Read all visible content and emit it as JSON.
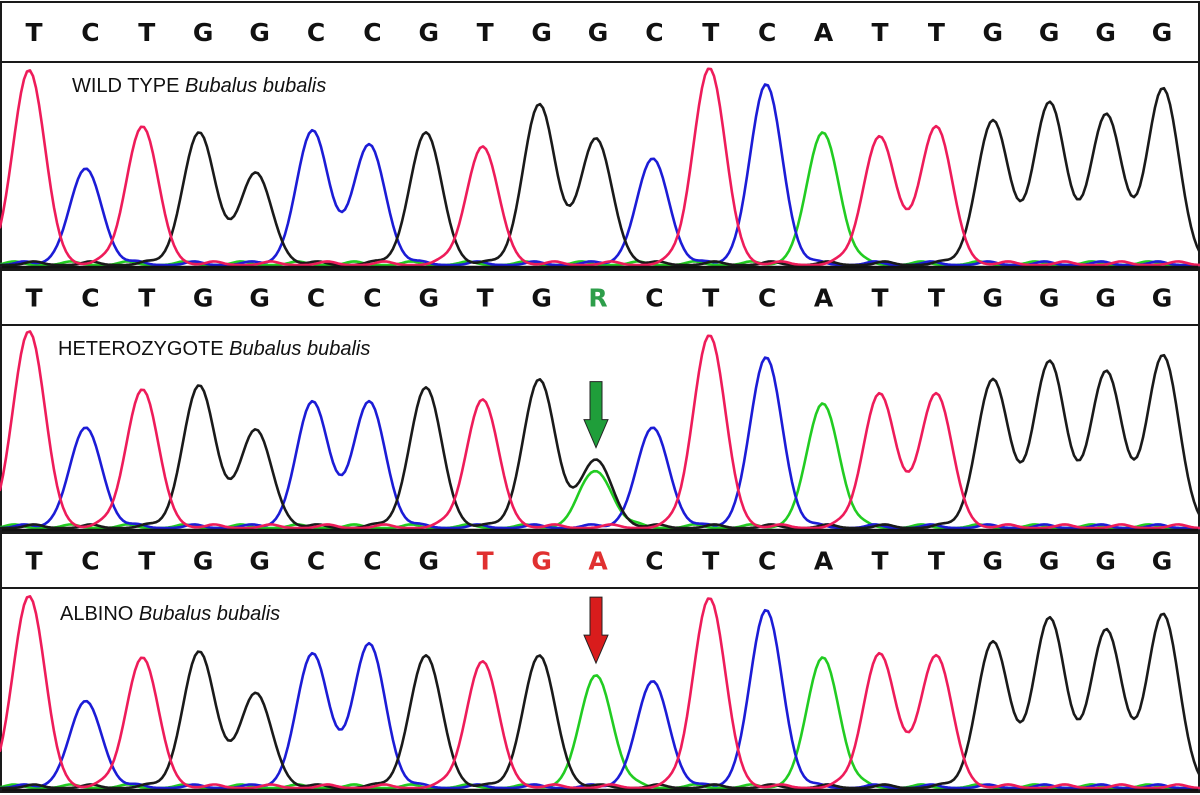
{
  "colors": {
    "A": "#22cc22",
    "C": "#1c1cd6",
    "G": "#1a1a1a",
    "T": "#ee1c5a",
    "R_label": "#2e9e4a",
    "mutation_label": "#e03030",
    "arrow_het": "#1f9e3a",
    "arrow_albino": "#d91c1c"
  },
  "panels": [
    {
      "id": "wild-type",
      "label_main": "WILD TYPE ",
      "label_italic": "Bubalus bubalis",
      "sequence": [
        "T",
        "C",
        "T",
        "G",
        "G",
        "C",
        "C",
        "G",
        "T",
        "G",
        "G",
        "C",
        "T",
        "C",
        "A",
        "T",
        "T",
        "G",
        "G",
        "G",
        "G"
      ],
      "highlight_indices": [],
      "highlight_color": "",
      "peaks": [
        {
          "base": "T",
          "height": 0.97
        },
        {
          "base": "C",
          "height": 0.48
        },
        {
          "base": "T",
          "height": 0.69
        },
        {
          "base": "G",
          "height": 0.66
        },
        {
          "base": "G",
          "height": 0.46
        },
        {
          "base": "C",
          "height": 0.67
        },
        {
          "base": "C",
          "height": 0.6
        },
        {
          "base": "G",
          "height": 0.66
        },
        {
          "base": "T",
          "height": 0.59
        },
        {
          "base": "G",
          "height": 0.8
        },
        {
          "base": "G",
          "height": 0.63
        },
        {
          "base": "C",
          "height": 0.53
        },
        {
          "base": "T",
          "height": 0.98
        },
        {
          "base": "C",
          "height": 0.9
        },
        {
          "base": "A",
          "height": 0.66
        },
        {
          "base": "T",
          "height": 0.64
        },
        {
          "base": "T",
          "height": 0.69
        },
        {
          "base": "G",
          "height": 0.72
        },
        {
          "base": "G",
          "height": 0.81
        },
        {
          "base": "G",
          "height": 0.75
        },
        {
          "base": "G",
          "height": 0.88
        }
      ],
      "arrow": null
    },
    {
      "id": "heterozygote",
      "label_main": "HETEROZYGOTE ",
      "label_italic": "Bubalus bubalis",
      "sequence": [
        "T",
        "C",
        "T",
        "G",
        "G",
        "C",
        "C",
        "G",
        "T",
        "G",
        "R",
        "C",
        "T",
        "C",
        "A",
        "T",
        "T",
        "G",
        "G",
        "G",
        "G"
      ],
      "highlight_indices": [
        10
      ],
      "highlight_color": "#2e9e4a",
      "peaks": [
        {
          "base": "T",
          "height": 0.98
        },
        {
          "base": "C",
          "height": 0.5
        },
        {
          "base": "T",
          "height": 0.69
        },
        {
          "base": "G",
          "height": 0.71
        },
        {
          "base": "G",
          "height": 0.49
        },
        {
          "base": "C",
          "height": 0.63
        },
        {
          "base": "C",
          "height": 0.63
        },
        {
          "base": "G",
          "height": 0.7
        },
        {
          "base": "T",
          "height": 0.64
        },
        {
          "base": "G",
          "height": 0.74
        },
        {
          "base": "G",
          "height": 0.34,
          "secondary": {
            "base": "A",
            "height": 0.28
          }
        },
        {
          "base": "C",
          "height": 0.5
        },
        {
          "base": "T",
          "height": 0.96
        },
        {
          "base": "C",
          "height": 0.85
        },
        {
          "base": "A",
          "height": 0.62
        },
        {
          "base": "T",
          "height": 0.67
        },
        {
          "base": "T",
          "height": 0.67
        },
        {
          "base": "G",
          "height": 0.74
        },
        {
          "base": "G",
          "height": 0.83
        },
        {
          "base": "G",
          "height": 0.78
        },
        {
          "base": "G",
          "height": 0.86
        }
      ],
      "arrow": {
        "peak_index": 10,
        "color": "#1f9e3a"
      }
    },
    {
      "id": "albino",
      "label_main": "ALBINO ",
      "label_italic": "Bubalus bubalis",
      "sequence": [
        "T",
        "C",
        "T",
        "G",
        "G",
        "C",
        "C",
        "G",
        "T",
        "G",
        "A",
        "C",
        "T",
        "C",
        "A",
        "T",
        "T",
        "G",
        "G",
        "G",
        "G"
      ],
      "highlight_indices": [
        8,
        9,
        10
      ],
      "highlight_color": "#e03030",
      "peaks": [
        {
          "base": "T",
          "height": 0.97
        },
        {
          "base": "C",
          "height": 0.44
        },
        {
          "base": "T",
          "height": 0.66
        },
        {
          "base": "G",
          "height": 0.69
        },
        {
          "base": "G",
          "height": 0.48
        },
        {
          "base": "C",
          "height": 0.68
        },
        {
          "base": "C",
          "height": 0.73
        },
        {
          "base": "G",
          "height": 0.67
        },
        {
          "base": "T",
          "height": 0.64
        },
        {
          "base": "G",
          "height": 0.67
        },
        {
          "base": "A",
          "height": 0.57
        },
        {
          "base": "C",
          "height": 0.54
        },
        {
          "base": "T",
          "height": 0.96
        },
        {
          "base": "C",
          "height": 0.9
        },
        {
          "base": "A",
          "height": 0.66
        },
        {
          "base": "T",
          "height": 0.68
        },
        {
          "base": "T",
          "height": 0.67
        },
        {
          "base": "G",
          "height": 0.74
        },
        {
          "base": "G",
          "height": 0.86
        },
        {
          "base": "G",
          "height": 0.8
        },
        {
          "base": "G",
          "height": 0.88
        }
      ],
      "arrow": {
        "peak_index": 10,
        "color": "#d91c1c"
      }
    }
  ]
}
